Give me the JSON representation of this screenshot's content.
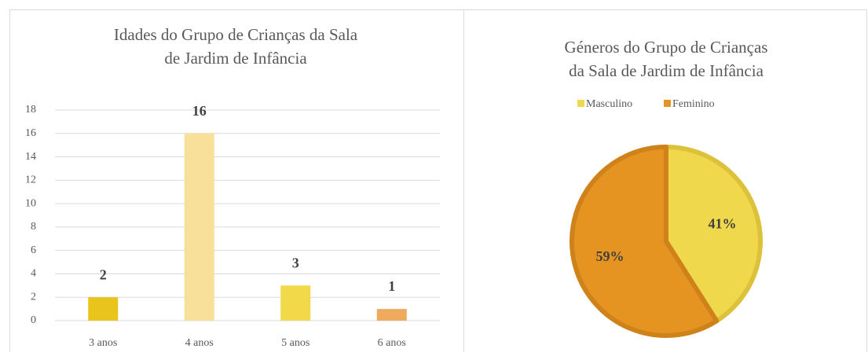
{
  "chart_data": [
    {
      "type": "bar",
      "title": [
        "Idades do Grupo de Crianças da Sala",
        "de Jardim de Infância"
      ],
      "categories": [
        "3 anos",
        "4 anos",
        "5 anos",
        "6 anos"
      ],
      "values": [
        2,
        16,
        3,
        1
      ],
      "colors": [
        "#e8c41c",
        "#f8e09a",
        "#f2d94a",
        "#eeab5e"
      ],
      "ylim": [
        0,
        18
      ],
      "yticks": [
        0,
        2,
        4,
        6,
        8,
        10,
        12,
        14,
        16,
        18
      ],
      "grid": true
    },
    {
      "type": "pie",
      "title": [
        "Géneros do Grupo de Crianças",
        "da Sala de Jardim de Infância"
      ],
      "categories": [
        "Masculino",
        "Feminino"
      ],
      "values": [
        41,
        59
      ],
      "value_labels": [
        "41%",
        "59%"
      ],
      "colors": [
        "#f0d84c",
        "#e59421"
      ],
      "legend": "top"
    }
  ]
}
